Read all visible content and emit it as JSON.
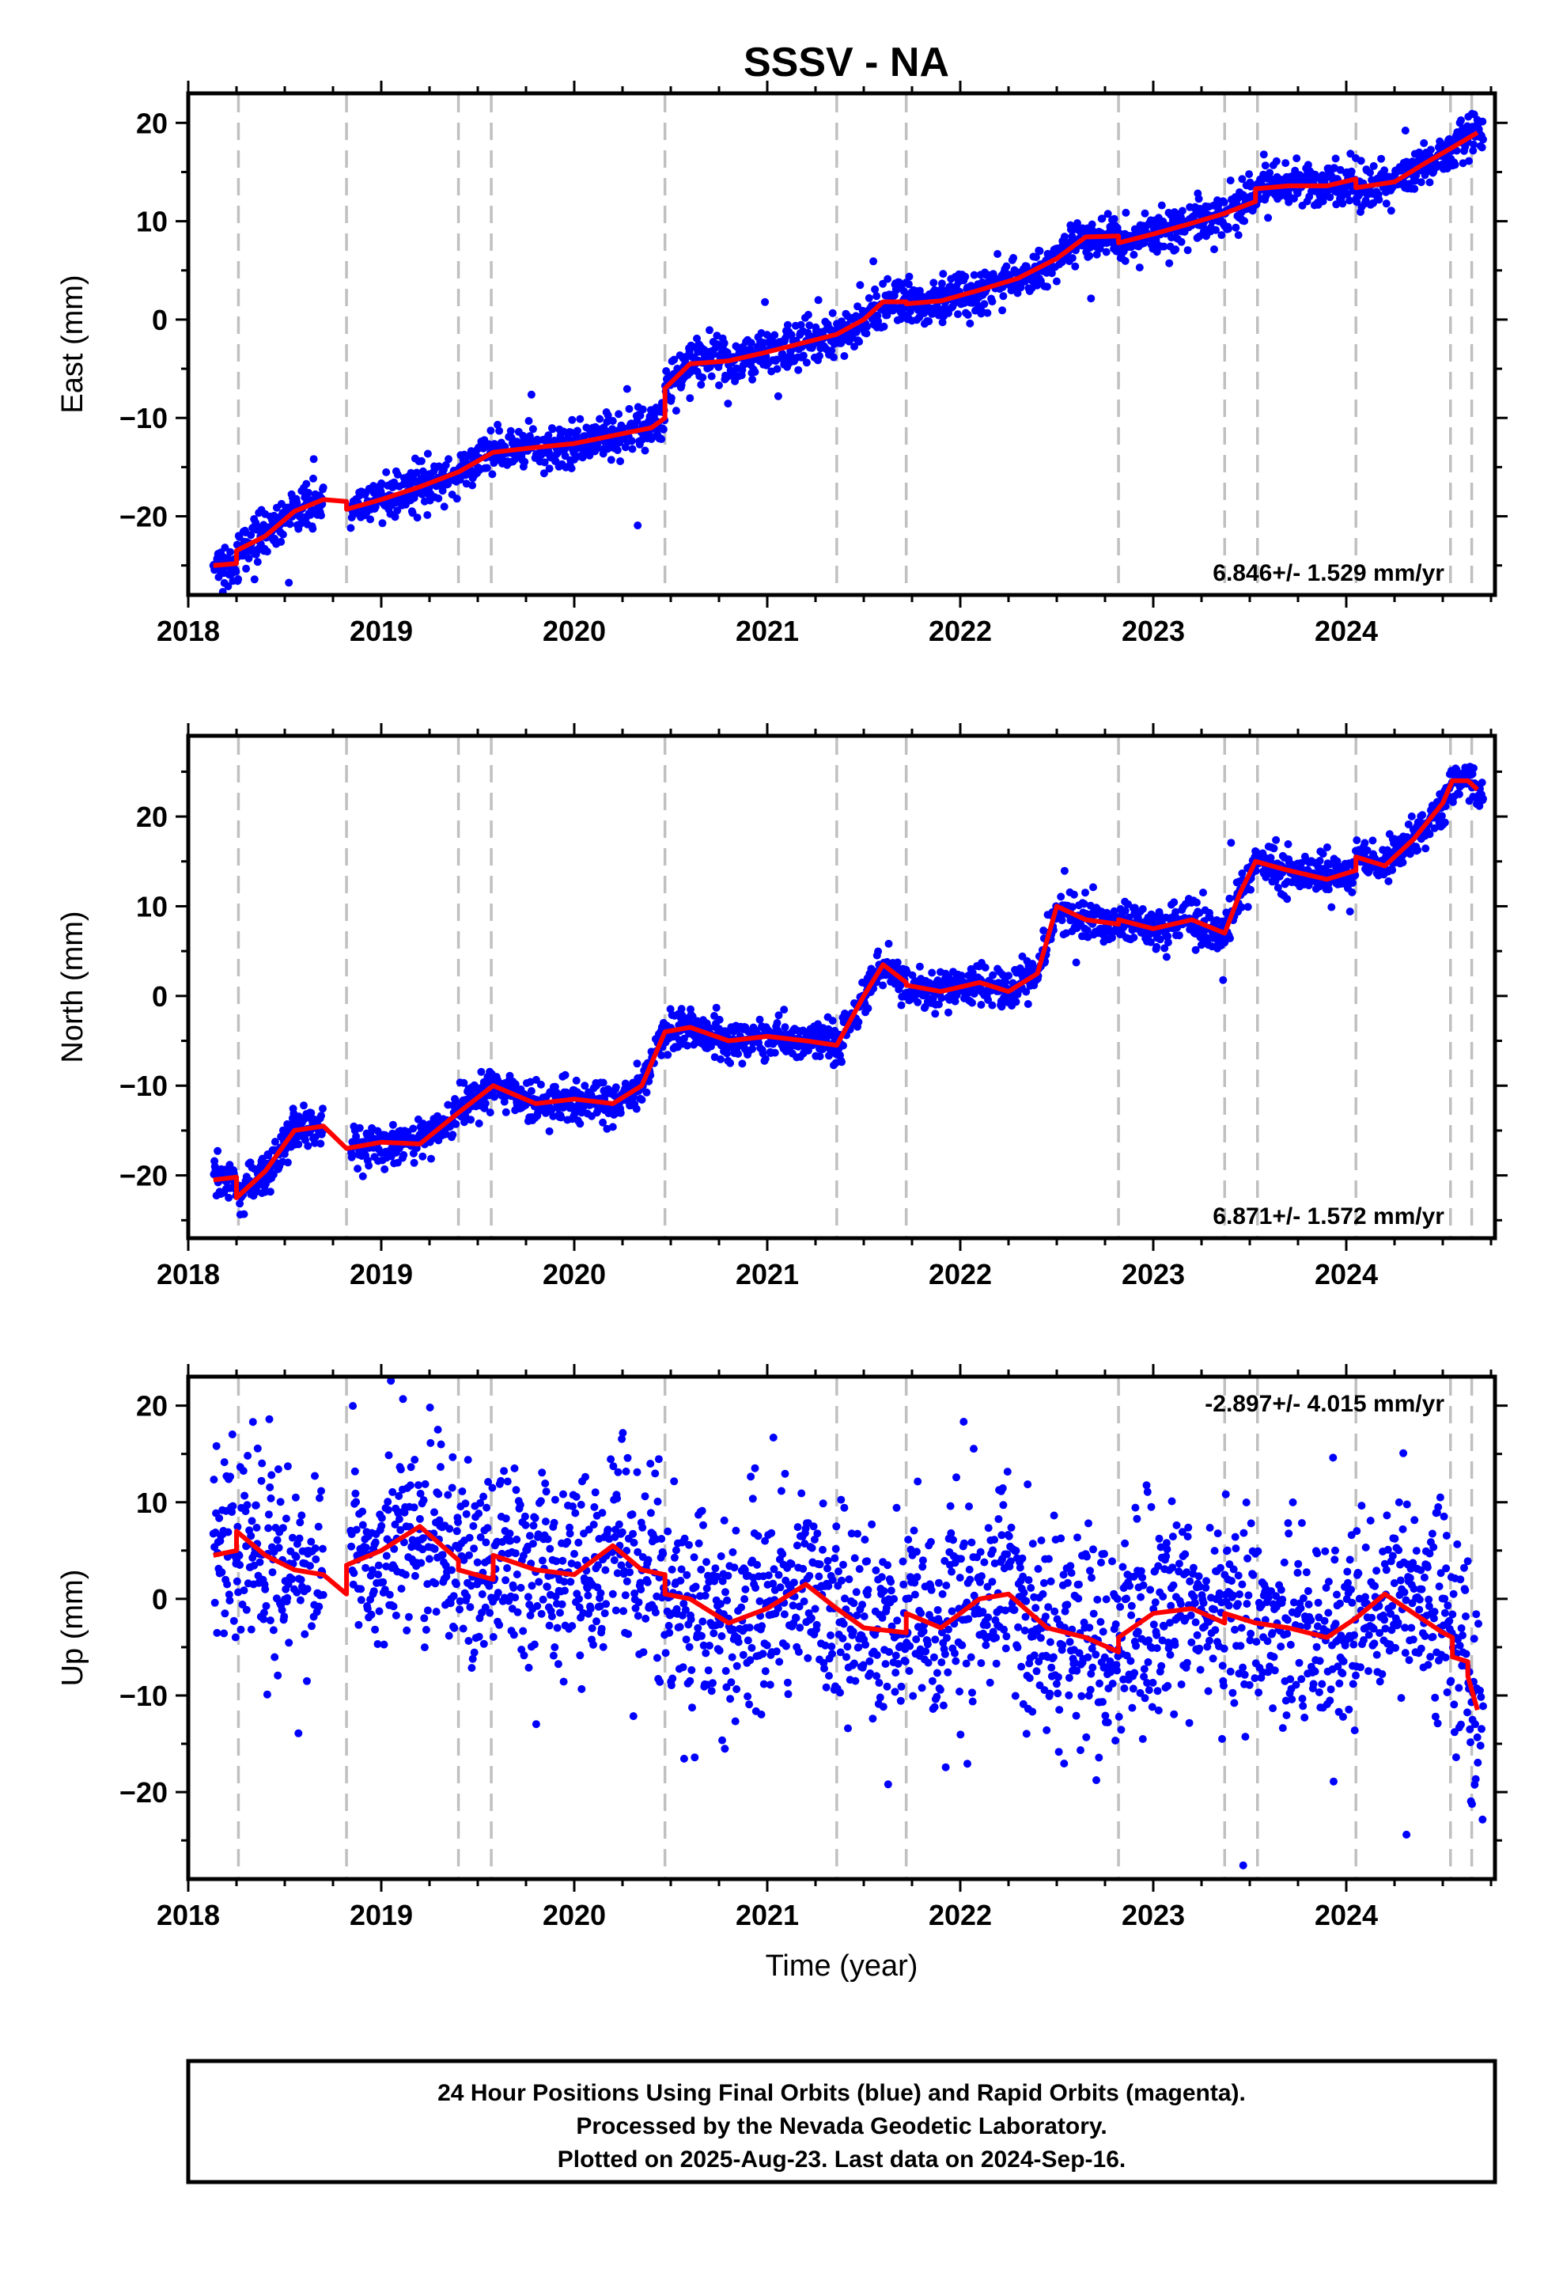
{
  "title": "SSSV - NA",
  "colors": {
    "points": "#0000ff",
    "model": "#ff0000",
    "breaks": "#c0c0c0",
    "frame": "#000000"
  },
  "chart_data": [
    {
      "type": "scatter",
      "ylabel": "East (mm)",
      "xlabel": "",
      "xlim": [
        2018.0,
        2024.8
      ],
      "ylim": [
        -28,
        23
      ],
      "xticks": [
        "2018",
        "2019",
        "2020",
        "2021",
        "2022",
        "2023",
        "2024"
      ],
      "yticks": [
        "20",
        "10",
        "0",
        "−10",
        "−20"
      ],
      "ytick_values": [
        20,
        10,
        0,
        -10,
        -20
      ],
      "rate": "6.846+/- 1.529 mm/yr",
      "rate_position": "bottom-right",
      "series": [
        {
          "kind": "model",
          "x": [
            2018.13,
            2018.25,
            2018.25,
            2018.4,
            2018.55,
            2018.7,
            2018.82,
            2018.82,
            2019.0,
            2019.2,
            2019.4,
            2019.58,
            2019.8,
            2020.0,
            2020.2,
            2020.4,
            2020.47,
            2020.47,
            2020.6,
            2020.8,
            2021.0,
            2021.2,
            2021.36,
            2021.5,
            2021.6,
            2021.72,
            2021.72,
            2021.9,
            2022.1,
            2022.3,
            2022.5,
            2022.65,
            2022.82,
            2022.82,
            2023.0,
            2023.2,
            2023.37,
            2023.53,
            2023.53,
            2023.7,
            2023.9,
            2024.05,
            2024.05,
            2024.25,
            2024.4,
            2024.55,
            2024.68
          ],
          "y": [
            -25,
            -24.8,
            -23.5,
            -22,
            -19.5,
            -18.3,
            -18.5,
            -19.3,
            -18.3,
            -17,
            -15.5,
            -13.5,
            -13.0,
            -12.6,
            -11.8,
            -11.0,
            -10.0,
            -7.0,
            -4.5,
            -4.2,
            -3.3,
            -2.3,
            -1.5,
            0,
            1.8,
            1.8,
            1.6,
            1.9,
            3.0,
            4.2,
            6.2,
            8.4,
            8.5,
            7.8,
            8.7,
            9.8,
            10.8,
            12.0,
            13.3,
            13.6,
            13.6,
            14.3,
            13.4,
            14.0,
            15.8,
            17.5,
            19.0
          ]
        },
        {
          "kind": "points",
          "x": [],
          "y": []
        }
      ]
    },
    {
      "type": "scatter",
      "ylabel": "North (mm)",
      "xlabel": "",
      "xlim": [
        2018.0,
        2024.8
      ],
      "ylim": [
        -27,
        29
      ],
      "xticks": [
        "2018",
        "2019",
        "2020",
        "2021",
        "2022",
        "2023",
        "2024"
      ],
      "yticks": [
        "20",
        "10",
        "0",
        "−10",
        "−20"
      ],
      "ytick_values": [
        20,
        10,
        0,
        -10,
        -20
      ],
      "rate": "6.871+/- 1.572 mm/yr",
      "rate_position": "bottom-right",
      "series": [
        {
          "kind": "model",
          "x": [
            2018.13,
            2018.25,
            2018.25,
            2018.4,
            2018.55,
            2018.7,
            2018.82,
            2018.82,
            2019.0,
            2019.2,
            2019.4,
            2019.58,
            2019.8,
            2020.0,
            2020.2,
            2020.35,
            2020.47,
            2020.6,
            2020.8,
            2021.0,
            2021.2,
            2021.36,
            2021.5,
            2021.6,
            2021.72,
            2021.72,
            2021.9,
            2022.1,
            2022.25,
            2022.4,
            2022.5,
            2022.65,
            2022.82,
            2022.82,
            2023.0,
            2023.2,
            2023.37,
            2023.45,
            2023.53,
            2023.7,
            2023.9,
            2024.05,
            2024.05,
            2024.2,
            2024.35,
            2024.5,
            2024.55,
            2024.63,
            2024.68
          ],
          "y": [
            -20.5,
            -20.2,
            -22.5,
            -19.5,
            -15,
            -14.5,
            -17,
            -17,
            -16.3,
            -16.5,
            -13,
            -10,
            -12,
            -11.5,
            -12,
            -10,
            -4,
            -3.5,
            -5,
            -4.5,
            -5,
            -5.5,
            0,
            3.5,
            1.5,
            1.2,
            0.5,
            1.5,
            0.5,
            2.5,
            10,
            8.5,
            8,
            8.5,
            7.5,
            8.5,
            7,
            11.5,
            15,
            14,
            13,
            14,
            15.5,
            14.5,
            17.5,
            21.5,
            24,
            24,
            23
          ]
        },
        {
          "kind": "points",
          "x": [],
          "y": []
        }
      ]
    },
    {
      "type": "scatter",
      "ylabel": "Up (mm)",
      "xlabel": "Time (year)",
      "xlim": [
        2018.0,
        2024.8
      ],
      "ylim": [
        -29,
        23
      ],
      "xticks": [
        "2018",
        "2019",
        "2020",
        "2021",
        "2022",
        "2023",
        "2024"
      ],
      "yticks": [
        "20",
        "10",
        "0",
        "−10",
        "−20"
      ],
      "ytick_values": [
        20,
        10,
        0,
        -10,
        -20
      ],
      "rate": "-2.897+/- 4.015 mm/yr",
      "rate_position": "top-right",
      "series": [
        {
          "kind": "model",
          "x": [
            2018.13,
            2018.25,
            2018.25,
            2018.4,
            2018.55,
            2018.7,
            2018.82,
            2018.82,
            2019.0,
            2019.2,
            2019.4,
            2019.4,
            2019.58,
            2019.58,
            2019.8,
            2020.0,
            2020.2,
            2020.35,
            2020.47,
            2020.47,
            2020.6,
            2020.8,
            2021.0,
            2021.2,
            2021.36,
            2021.5,
            2021.72,
            2021.72,
            2021.9,
            2022.1,
            2022.25,
            2022.45,
            2022.65,
            2022.82,
            2022.82,
            2023.0,
            2023.2,
            2023.37,
            2023.37,
            2023.53,
            2023.7,
            2023.9,
            2024.05,
            2024.2,
            2024.35,
            2024.5,
            2024.55,
            2024.55,
            2024.63,
            2024.63,
            2024.68
          ],
          "y": [
            4.5,
            5,
            7,
            4.5,
            3,
            2.5,
            0.5,
            3.5,
            5,
            7.5,
            4,
            3,
            2,
            4.5,
            3,
            2.5,
            5.5,
            3,
            2.5,
            0.5,
            0,
            -2.5,
            -1,
            1.5,
            -1,
            -3,
            -3.5,
            -1.5,
            -3,
            0,
            0.5,
            -3,
            -4,
            -5.5,
            -4,
            -1.5,
            -1,
            -2.5,
            -1.5,
            -2.5,
            -3,
            -4,
            -2,
            0.5,
            -1.5,
            -3.5,
            -4,
            -6,
            -6.5,
            -8,
            -11.5
          ]
        },
        {
          "kind": "points",
          "x": [],
          "y": []
        }
      ]
    }
  ],
  "breaks": [
    2018.26,
    2018.82,
    2019.4,
    2019.57,
    2020.47,
    2021.36,
    2021.72,
    2022.82,
    2023.37,
    2023.54,
    2024.05,
    2024.54,
    2024.65
  ],
  "footer": {
    "line1": "24 Hour Positions Using Final Orbits (blue) and Rapid Orbits (magenta).",
    "line2": "Processed by the Nevada Geodetic Laboratory.",
    "line3": "Plotted on 2025-Aug-23. Last data on 2024-Sep-16."
  }
}
